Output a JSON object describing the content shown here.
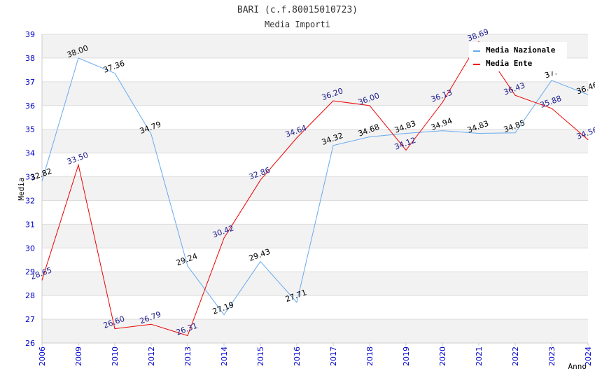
{
  "chart_data": {
    "type": "line",
    "title": "BARI (c.f.80015010723)",
    "subtitle": "Media Importi",
    "xlabel": "Anno",
    "ylabel": "Media",
    "ylim": [
      26,
      39
    ],
    "yticks": [
      26,
      27,
      28,
      29,
      30,
      31,
      32,
      33,
      34,
      35,
      36,
      37,
      38,
      39
    ],
    "categories": [
      "2006",
      "2009",
      "2010",
      "2012",
      "2013",
      "2014",
      "2015",
      "2016",
      "2017",
      "2018",
      "2019",
      "2020",
      "2021",
      "2022",
      "2023",
      "2024"
    ],
    "series": [
      {
        "name": "Media Nazionale",
        "color": "#66aaee",
        "values": [
          32.82,
          38.0,
          37.36,
          34.79,
          29.24,
          27.19,
          29.43,
          27.71,
          34.32,
          34.68,
          34.83,
          34.94,
          34.83,
          34.85,
          37.06,
          36.46
        ],
        "labels": [
          "32.82",
          "38.00",
          "37.36",
          "34.79",
          "29.24",
          "27.19",
          "29.43",
          "27.71",
          "34.32",
          "34.68",
          "34.83",
          "34.94",
          "34.83",
          "34.85",
          "37.",
          "36.46"
        ]
      },
      {
        "name": "Media Ente",
        "color": "#ee0000",
        "values": [
          28.65,
          33.5,
          26.6,
          26.79,
          26.31,
          30.42,
          32.86,
          34.64,
          36.2,
          36.0,
          34.12,
          36.13,
          38.69,
          36.43,
          35.88,
          34.56
        ],
        "labels": [
          "28.65",
          "33.50",
          "26.60",
          "26.79",
          "26.31",
          "30.42",
          "32.86",
          "34.64",
          "36.20",
          "36.00",
          "34.12",
          "36.13",
          "38.69",
          "36.43",
          "35.88",
          "34.56"
        ]
      }
    ],
    "legend": {
      "position": "top-right",
      "items": [
        "Media Nazionale",
        "Media Ente"
      ]
    },
    "grid": true,
    "band_colors": [
      "#f2f2f2",
      "#ffffff"
    ],
    "gridline_color": "#dddddd"
  }
}
